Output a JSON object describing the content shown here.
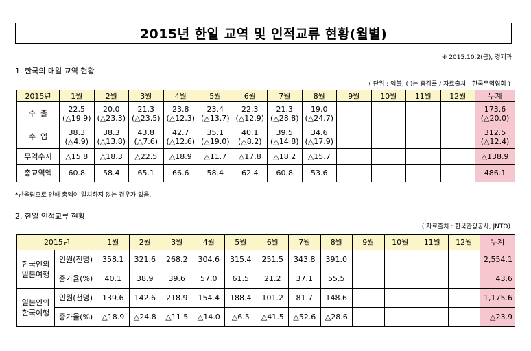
{
  "title": "2015년 한일 교역 및 인적교류 현황(월별)",
  "date_note": "※ 2015.10.2(금), 경제과",
  "section1": {
    "heading": "1. 한국의 대일 교역 현황",
    "source": "( 단위 : 억불, ( )는 증감률 / 자료출처 : 한국무역협회 )",
    "header": [
      "2015년",
      "1월",
      "2월",
      "3월",
      "4월",
      "5월",
      "6월",
      "7월",
      "8월",
      "9월",
      "10월",
      "11월",
      "12월",
      "누계"
    ],
    "rows": [
      {
        "label": "수  출",
        "cells": [
          [
            "22.5",
            "(△19.9)"
          ],
          [
            "20.0",
            "(△23.3)"
          ],
          [
            "21.3",
            "(△23.5)"
          ],
          [
            "23.8",
            "(△12.3)"
          ],
          [
            "23.4",
            "(△13.7)"
          ],
          [
            "22.3",
            "(△12.9)"
          ],
          [
            "21.3",
            "(△28.8)"
          ],
          [
            "19.0",
            "(△24.7)"
          ],
          [
            "",
            ""
          ],
          [
            "",
            ""
          ],
          [
            "",
            ""
          ],
          [
            "",
            ""
          ]
        ],
        "total": [
          "173.6",
          "(△20.0)"
        ]
      },
      {
        "label": "수  입",
        "cells": [
          [
            "38.3",
            "(△4.9)"
          ],
          [
            "38.3",
            "(△13.8)"
          ],
          [
            "43.8",
            "(△7.6)"
          ],
          [
            "42.7",
            "(△12.6)"
          ],
          [
            "35.1",
            "(△19.0)"
          ],
          [
            "40.1",
            "(△8.2)"
          ],
          [
            "39.5",
            "(△14.8)"
          ],
          [
            "34.6",
            "(△17.9)"
          ],
          [
            "",
            ""
          ],
          [
            "",
            ""
          ],
          [
            "",
            ""
          ],
          [
            "",
            ""
          ]
        ],
        "total": [
          "312.5",
          "(△12.4)"
        ]
      },
      {
        "label": "무역수지",
        "cells": [
          "△15.8",
          "△18.3",
          "△22.5",
          "△18.9",
          "△11.7",
          "△17.8",
          "△18.2",
          "△15.7",
          "",
          "",
          "",
          ""
        ],
        "total": "△138.9"
      },
      {
        "label": "총교역액",
        "cells": [
          "60.8",
          "58.4",
          "65.1",
          "66.6",
          "58.4",
          "62.4",
          "60.8",
          "53.6",
          "",
          "",
          "",
          ""
        ],
        "total": "486.1"
      }
    ],
    "footnote": "*반올림으로 인해 총액이 일치하지 않는 경우가 있음."
  },
  "section2": {
    "heading": "2. 한일 인적교류 현황",
    "source": "( 자료출처 : 한국관광공사, JNTO)",
    "header": [
      "2015년",
      "1월",
      "2월",
      "3월",
      "4월",
      "5월",
      "6월",
      "7월",
      "8월",
      "9월",
      "10월",
      "11월",
      "12월",
      "누계"
    ],
    "groups": [
      {
        "label": "한국인의 일본여행",
        "rows": [
          {
            "sub": "인원(천명)",
            "cells": [
              "358.1",
              "321.6",
              "268.2",
              "304.6",
              "315.4",
              "251.5",
              "343.8",
              "391.0",
              "",
              "",
              "",
              ""
            ],
            "total": "2,554.1"
          },
          {
            "sub": "증가율(%)",
            "cells": [
              "40.1",
              "38.9",
              "39.6",
              "57.0",
              "61.5",
              "21.2",
              "37.1",
              "55.5",
              "",
              "",
              "",
              ""
            ],
            "total": "43.6"
          }
        ]
      },
      {
        "label": "일본인의 한국여행",
        "rows": [
          {
            "sub": "인원(천명)",
            "cells": [
              "139.6",
              "142.6",
              "218.9",
              "154.4",
              "188.4",
              "101.2",
              "81.7",
              "148.6",
              "",
              "",
              "",
              ""
            ],
            "total": "1,175.6"
          },
          {
            "sub": "증가율(%)",
            "cells": [
              "△18.9",
              "△24.8",
              "△11.5",
              "△14.0",
              "△6.5",
              "△41.5",
              "△52.6",
              "△28.6",
              "",
              "",
              "",
              ""
            ],
            "total": "△23.9"
          }
        ]
      }
    ]
  }
}
